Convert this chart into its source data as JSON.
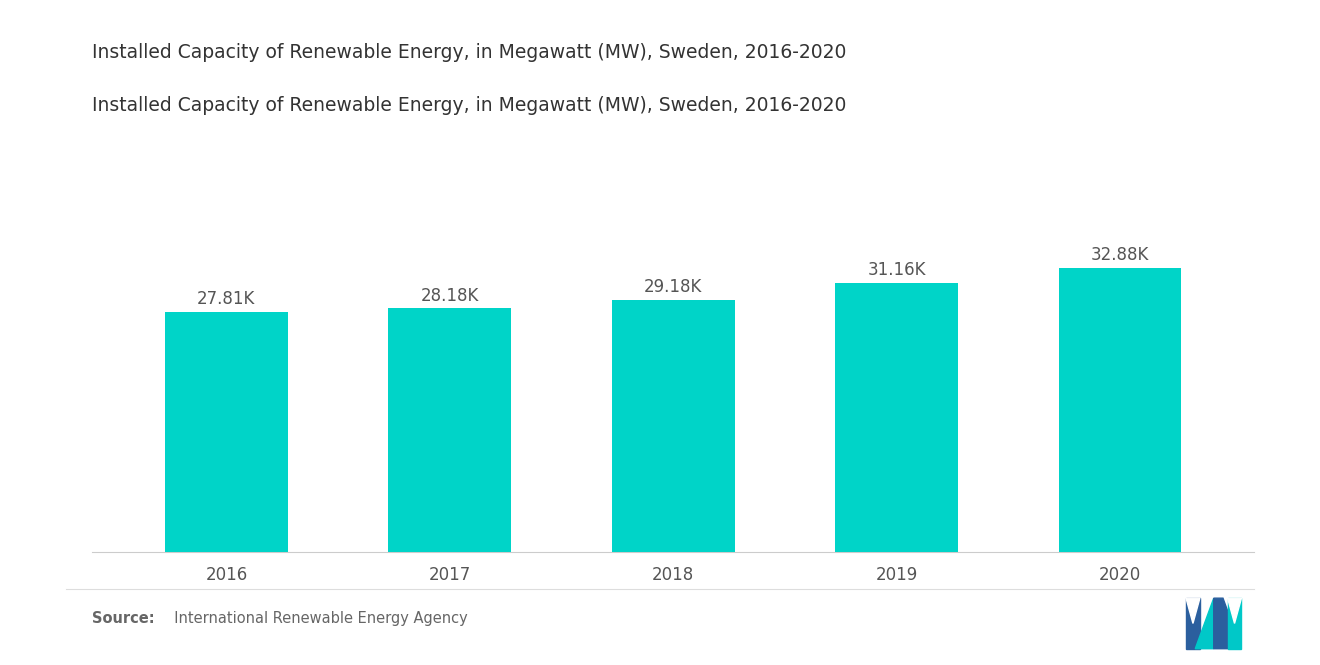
{
  "title": "Installed Capacity of Renewable Energy, in Megawatt (MW), Sweden, 2016-2020",
  "categories": [
    "2016",
    "2017",
    "2018",
    "2019",
    "2020"
  ],
  "values": [
    27810,
    28180,
    29180,
    31160,
    32880
  ],
  "labels": [
    "27.81K",
    "28.18K",
    "29.18K",
    "31.16K",
    "32.88K"
  ],
  "bar_color": "#00D4C8",
  "background_color": "#FFFFFF",
  "title_fontsize": 13.5,
  "label_fontsize": 12,
  "tick_fontsize": 12,
  "source_bold": "Source:",
  "source_normal": "  International Renewable Energy Agency",
  "ylim": [
    0,
    50000
  ],
  "bar_width": 0.55,
  "logo_blue": "#2B5F9E",
  "logo_teal": "#00C8C8",
  "label_color": "#555555",
  "tick_color": "#555555",
  "title_color": "#333333",
  "source_color": "#666666"
}
